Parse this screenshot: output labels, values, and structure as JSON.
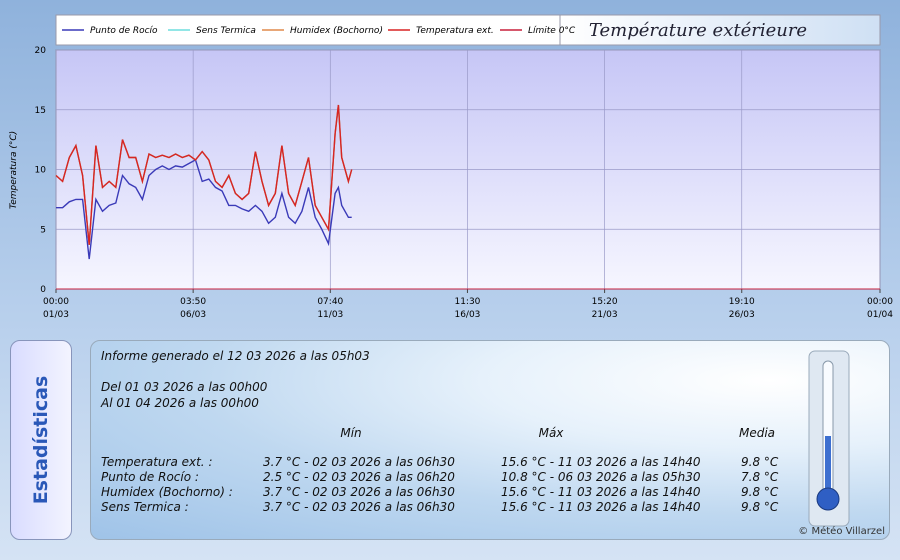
{
  "chart_data": {
    "type": "line",
    "title": "Température extérieure",
    "y_label": "Temperatura (°C)",
    "x": [
      "01/03 00:00",
      "01/03 06:00",
      "01/03 12:00",
      "01/03 18:00",
      "02/03 00:00",
      "02/03 06:00",
      "02/03 12:00",
      "02/03 18:00",
      "03/03 00:00",
      "03/03 06:00",
      "03/03 12:00",
      "03/03 18:00",
      "04/03 00:00",
      "04/03 06:00",
      "04/03 12:00",
      "04/03 18:00",
      "05/03 00:00",
      "05/03 06:00",
      "05/03 12:00",
      "05/03 18:00",
      "06/03 00:00",
      "06/03 06:00",
      "06/03 12:00",
      "06/03 18:00",
      "07/03 00:00",
      "07/03 06:00",
      "07/03 12:00",
      "07/03 18:00",
      "08/03 00:00",
      "08/03 06:00",
      "08/03 12:00",
      "08/03 18:00",
      "09/03 00:00",
      "09/03 06:00",
      "09/03 12:00",
      "09/03 18:00",
      "10/03 00:00",
      "10/03 06:00",
      "10/03 12:00",
      "10/03 18:00",
      "11/03 00:00",
      "11/03 06:00",
      "11/03 12:00",
      "11/03 15:00",
      "11/03 18:00",
      "12/03 00:00",
      "12/03 03:00"
    ],
    "series": [
      {
        "name": "Punto de Rocío",
        "color": "#3a3ab8",
        "values": [
          6.8,
          6.8,
          7.3,
          7.5,
          7.5,
          2.5,
          7.5,
          6.5,
          7,
          7.2,
          9.5,
          8.8,
          8.5,
          7.5,
          9.5,
          10,
          10.3,
          10,
          10.3,
          10.2,
          10.5,
          10.8,
          9,
          9.2,
          8.5,
          8.2,
          7,
          7,
          6.7,
          6.5,
          7,
          6.5,
          5.5,
          6,
          8,
          6,
          5.5,
          6.5,
          8.5,
          6,
          5,
          3.8,
          8,
          8.5,
          7,
          6,
          6
        ]
      },
      {
        "name": "Sens Termica",
        "color": "#6fdede",
        "values": [
          9.5,
          9,
          11,
          12,
          9.5,
          3.7,
          12,
          8.5,
          9,
          8.5,
          12.5,
          11,
          11,
          9,
          11.3,
          11,
          11.2,
          11,
          11.3,
          11,
          11.2,
          10.8,
          11.5,
          10.8,
          9,
          8.5,
          9.5,
          8,
          7.5,
          8,
          11.5,
          9,
          7,
          8,
          12,
          8,
          7,
          9,
          11,
          7,
          6,
          5,
          13,
          15.4,
          11,
          9,
          10
        ]
      },
      {
        "name": "Humidex (Bochorno)",
        "color": "#e08a4c",
        "values": [
          9.5,
          9,
          11,
          12,
          9.5,
          3.7,
          12,
          8.5,
          9,
          8.5,
          12.5,
          11,
          11,
          9,
          11.3,
          11,
          11.2,
          11,
          11.3,
          11,
          11.2,
          10.8,
          11.5,
          10.8,
          9,
          8.5,
          9.5,
          8,
          7.5,
          8,
          11.5,
          9,
          7,
          8,
          12,
          8,
          7,
          9,
          11,
          7,
          6,
          5,
          13,
          15.4,
          11,
          9,
          10
        ]
      },
      {
        "name": "Temperatura ext.",
        "color": "#d82424",
        "values": [
          9.5,
          9,
          11,
          12,
          9.5,
          3.7,
          12,
          8.5,
          9,
          8.5,
          12.5,
          11,
          11,
          9,
          11.3,
          11,
          11.2,
          11,
          11.3,
          11,
          11.2,
          10.8,
          11.5,
          10.8,
          9,
          8.5,
          9.5,
          8,
          7.5,
          8,
          11.5,
          9,
          7,
          8,
          12,
          8,
          7,
          9,
          11,
          7,
          6,
          5,
          13,
          15.4,
          11,
          9,
          10
        ]
      }
    ],
    "limit_line": {
      "name": "Límite 0°C",
      "color": "#c8203c",
      "value": 0
    },
    "xlim": [
      "01/03 00:00",
      "01/04 00:00"
    ],
    "xticks": [
      {
        "value": "01/03 00:00",
        "label": "00:00\n01/03"
      },
      {
        "value": "06/03 03:50",
        "label": "03:50\n06/03"
      },
      {
        "value": "11/03 07:40",
        "label": "07:40\n11/03"
      },
      {
        "value": "16/03 11:30",
        "label": "11:30\n16/03"
      },
      {
        "value": "21/03 15:20",
        "label": "15:20\n21/03"
      },
      {
        "value": "26/03 19:10",
        "label": "19:10\n26/03"
      },
      {
        "value": "01/04 00:00",
        "label": "00:00\n01/04"
      }
    ],
    "ylim": [
      0,
      20
    ],
    "yticks": [
      0,
      5,
      10,
      15,
      20
    ],
    "grid": true
  },
  "stats": {
    "heading": "Estadísticas",
    "generated": "Informe generado el 12 03 2026 a las 05h03",
    "from": "Del 01 03 2026 a las 00h00",
    "to": "Al 01 04 2026 a las 00h00",
    "columns": [
      "Mín",
      "Máx",
      "Media"
    ],
    "rows": [
      [
        "Temperatura ext. :",
        "3.7 °C - 02 03 2026 a las 06h30",
        "15.6 °C - 11 03 2026 a las 14h40",
        "9.8 °C"
      ],
      [
        "Punto de Rocío :",
        "2.5 °C - 02 03 2026 a las 06h20",
        "10.8 °C - 06 03 2026 a las 05h30",
        "7.8 °C"
      ],
      [
        "Humidex (Bochorno) :",
        "3.7 °C - 02 03 2026 a las 06h30",
        "15.6 °C - 11 03 2026 a las 14h40",
        "9.8 °C"
      ],
      [
        "Sens Termica :",
        "3.7 °C - 02 03 2026 a las 06h30",
        "15.6 °C - 11 03 2026 a las 14h40",
        "9.8 °C"
      ]
    ],
    "credit": "© Météo Villarzel"
  }
}
